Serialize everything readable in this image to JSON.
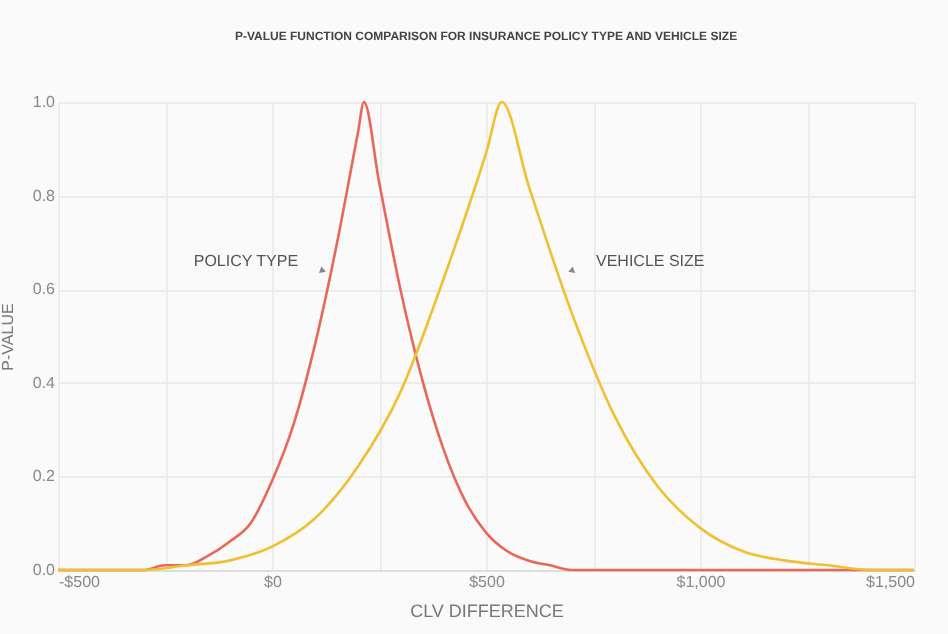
{
  "chart_data": {
    "type": "line",
    "title": "P-VALUE FUNCTION COMPARISON FOR INSURANCE POLICY TYPE AND VEHICLE SIZE",
    "xlabel": "CLV DIFFERENCE",
    "ylabel": "P-VALUE",
    "xlim": [
      -500,
      1500
    ],
    "xticks": [
      {
        "value": -500,
        "label": "-$500"
      },
      {
        "value": 0,
        "label": "$0"
      },
      {
        "value": 500,
        "label": "$500"
      },
      {
        "value": 1000,
        "label": "$1,000"
      },
      {
        "value": 1500,
        "label": "$1,500"
      }
    ],
    "ylim": [
      0,
      1
    ],
    "yticks": [
      {
        "value": 0,
        "label": "0.0"
      },
      0.2,
      0.4,
      0.6,
      0.8,
      {
        "value": 1,
        "label": "1.0"
      }
    ],
    "grid": true,
    "line_style": "solid",
    "series": [
      {
        "color": "#e8675a",
        "x": [
          -500,
          -400,
          -300,
          -250,
          -200,
          -150,
          -100,
          -50,
          0,
          50,
          100,
          150,
          200,
          215,
          250,
          300,
          350,
          400,
          450,
          500,
          550,
          600,
          650,
          700,
          800,
          1000,
          1500
        ],
        "values": [
          0,
          0,
          0,
          0.01,
          0.01,
          0.03,
          0.06,
          0.1,
          0.19,
          0.31,
          0.48,
          0.69,
          0.93,
          1,
          0.83,
          0.6,
          0.41,
          0.26,
          0.15,
          0.08,
          0.04,
          0.02,
          0.01,
          0,
          0,
          0,
          0
        ]
      },
      {
        "color": "#f0c030",
        "x": [
          -500,
          -300,
          -200,
          -100,
          0,
          100,
          200,
          300,
          400,
          500,
          537,
          600,
          700,
          800,
          900,
          1000,
          1100,
          1200,
          1300,
          1400,
          1500
        ],
        "values": [
          0,
          0,
          0.01,
          0.02,
          0.05,
          0.11,
          0.22,
          0.38,
          0.62,
          0.89,
          1,
          0.82,
          0.55,
          0.33,
          0.18,
          0.09,
          0.04,
          0.02,
          0.01,
          0,
          0
        ]
      }
    ],
    "annotations": [
      {
        "text": "POLICY TYPE",
        "x": 117,
        "y": 0.64
      },
      {
        "text": "VEHICLE SIZE",
        "x": 701,
        "y": 0.64
      }
    ]
  }
}
